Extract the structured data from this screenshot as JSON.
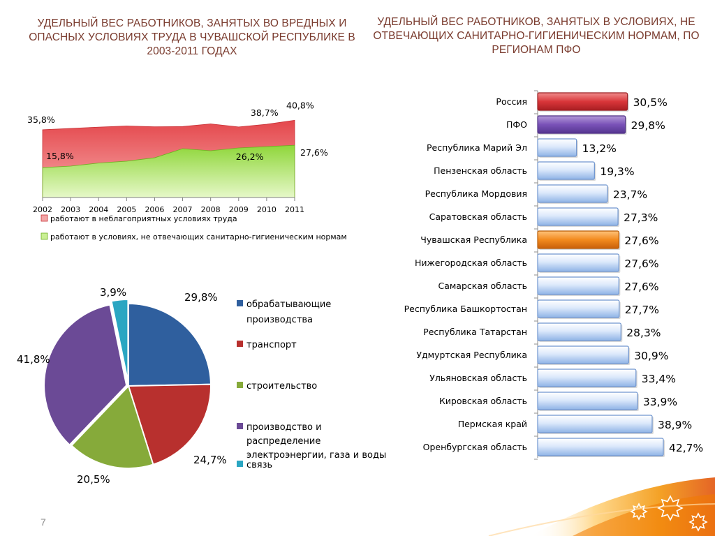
{
  "page": {
    "title_left": "УДЕЛЬНЫЙ ВЕС РАБОТНИКОВ, ЗАНЯТЫХ ВО ВРЕДНЫХ И ОПАСНЫХ УСЛОВИЯХ ТРУДА В ЧУВАШСКОЙ РЕСПУБЛИКЕ В 2003-2011 ГОДАХ",
    "title_right": "УДЕЛЬНЫЙ ВЕС РАБОТНИКОВ, ЗАНЯТЫХ В УСЛОВИЯХ, НЕ ОТВЕЧАЮЩИХ САНИТАРНО-ГИГИЕНИЧЕСКИМ НОРМАМ, ПО РЕГИОНАМ ПФО",
    "page_number": "7",
    "colors": {
      "title": "#7a3b2e",
      "red": "#e0464a",
      "green": "#9bd94a",
      "accent": "#f29100"
    }
  },
  "chart_data": [
    {
      "type": "area",
      "categories": [
        "2002",
        "2003",
        "2004",
        "2005",
        "2006",
        "2007",
        "2008",
        "2009",
        "2010",
        "2011"
      ],
      "series": [
        {
          "name": "работают в неблагоприятных условиях труда",
          "color": "#e8585c",
          "values": [
            35.8,
            36.5,
            37.2,
            37.8,
            37.4,
            37.5,
            38.9,
            37.3,
            38.7,
            40.8
          ]
        },
        {
          "name": "работают в условиях, не отвечающих  санитарно-гигиеническим  нормам",
          "color": "#a8e05a",
          "values": [
            15.8,
            16.6,
            18.2,
            19.2,
            21.0,
            25.8,
            24.7,
            26.2,
            26.9,
            27.6
          ]
        }
      ],
      "data_labels": [
        {
          "text": "35,8%",
          "series": 0,
          "index": 0
        },
        {
          "text": "38,7%",
          "series": 0,
          "index": 8
        },
        {
          "text": "40,8%",
          "series": 0,
          "index": 9
        },
        {
          "text": "15,8%",
          "series": 1,
          "index": 0
        },
        {
          "text": "26,2%",
          "series": 1,
          "index": 7
        },
        {
          "text": "27,6%",
          "series": 1,
          "index": 9
        }
      ],
      "ylim": [
        0,
        45
      ],
      "legend_position": "bottom"
    },
    {
      "type": "pie",
      "slices": [
        {
          "label": "обрабатывающие производства",
          "value": 29.8,
          "text": "29,8%",
          "color": "#2f5f9e"
        },
        {
          "label": "транспорт",
          "value": 24.7,
          "text": "24,7%",
          "color": "#b8302e"
        },
        {
          "label": "строительство",
          "value": 20.5,
          "text": "20,5%",
          "color": "#86aa3a"
        },
        {
          "label": "производство и распределение электроэнергии, газа и воды",
          "value": 41.8,
          "text": "41,8%",
          "color": "#6b4a96"
        },
        {
          "label": "связь",
          "value": 3.9,
          "text": "3,9%",
          "color": "#2aa6c2"
        }
      ],
      "legend_position": "right"
    },
    {
      "type": "bar",
      "orientation": "horizontal",
      "xlim": [
        0,
        45
      ],
      "bars": [
        {
          "category": "Россия",
          "value": 30.5,
          "text": "30,5%",
          "color": "red"
        },
        {
          "category": "ПФО",
          "value": 29.8,
          "text": "29,8%",
          "color": "purple"
        },
        {
          "category": "Республика Марий Эл",
          "value": 13.2,
          "text": "13,2%",
          "color": "blue"
        },
        {
          "category": "Пензенская область",
          "value": 19.3,
          "text": "19,3%",
          "color": "blue"
        },
        {
          "category": "Республика Мордовия",
          "value": 23.7,
          "text": "23,7%",
          "color": "blue"
        },
        {
          "category": "Саратовская область",
          "value": 27.3,
          "text": "27,3%",
          "color": "blue"
        },
        {
          "category": "Чувашская Республика",
          "value": 27.6,
          "text": "27,6%",
          "color": "orange"
        },
        {
          "category": "Нижегородская область",
          "value": 27.6,
          "text": "27,6%",
          "color": "blue"
        },
        {
          "category": "Самарская область",
          "value": 27.6,
          "text": "27,6%",
          "color": "blue"
        },
        {
          "category": "Республика Башкортостан",
          "value": 27.7,
          "text": "27,7%",
          "color": "blue"
        },
        {
          "category": "Республика Татарстан",
          "value": 28.3,
          "text": "28,3%",
          "color": "blue"
        },
        {
          "category": "Удмуртская Республика",
          "value": 30.9,
          "text": "30,9%",
          "color": "blue"
        },
        {
          "category": "Ульяновская область",
          "value": 33.4,
          "text": "33,4%",
          "color": "blue"
        },
        {
          "category": "Кировская область",
          "value": 33.9,
          "text": "33,9%",
          "color": "blue"
        },
        {
          "category": "Пермская край",
          "value": 38.9,
          "text": "38,9%",
          "color": "blue"
        },
        {
          "category": "Оренбургская область",
          "value": 42.7,
          "text": "42,7%",
          "color": "blue"
        }
      ]
    }
  ]
}
